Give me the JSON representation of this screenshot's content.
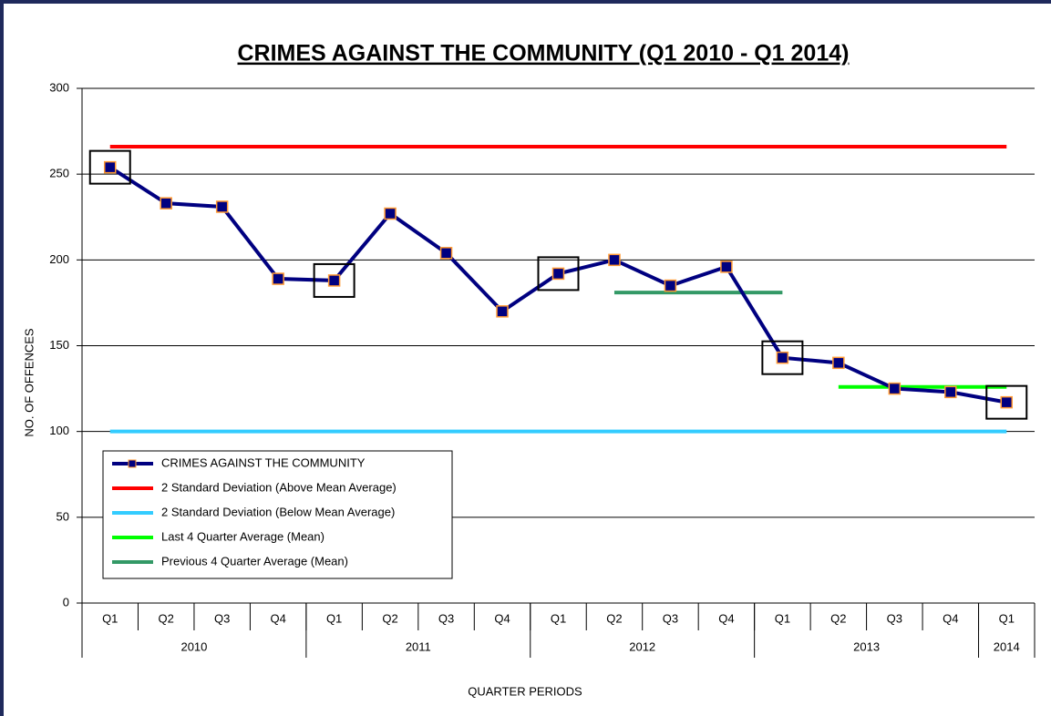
{
  "chart_data": {
    "type": "line",
    "title": "CRIMES AGAINST THE COMMUNITY (Q1 2010 - Q1 2014)",
    "y_label": "NO. OF OFFENCES",
    "x_label": "QUARTER PERIODS",
    "categories": [
      "Q1",
      "Q2",
      "Q3",
      "Q4",
      "Q1",
      "Q2",
      "Q3",
      "Q4",
      "Q1",
      "Q2",
      "Q3",
      "Q4",
      "Q1",
      "Q2",
      "Q3",
      "Q4",
      "Q1"
    ],
    "x_groups": [
      {
        "label": "2010",
        "categories": [
          "Q1",
          "Q2",
          "Q3",
          "Q4"
        ]
      },
      {
        "label": "2011",
        "categories": [
          "Q1",
          "Q2",
          "Q3",
          "Q4"
        ]
      },
      {
        "label": "2012",
        "categories": [
          "Q1",
          "Q2",
          "Q3",
          "Q4"
        ]
      },
      {
        "label": "2013",
        "categories": [
          "Q1",
          "Q2",
          "Q3",
          "Q4"
        ]
      },
      {
        "label": "2014",
        "categories": [
          "Q1"
        ]
      }
    ],
    "series": [
      {
        "name": "CRIMES AGAINST THE COMMUNITY",
        "color": "#000080",
        "marker": "square",
        "values": [
          254,
          233,
          231,
          189,
          188,
          227,
          204,
          170,
          192,
          200,
          185,
          196,
          143,
          140,
          125,
          123,
          117
        ]
      },
      {
        "name": "2 Standard Deviation (Above Mean Average)",
        "color": "#ff0000",
        "values": [
          266,
          266,
          266,
          266,
          266,
          266,
          266,
          266,
          266,
          266,
          266,
          266,
          266,
          266,
          266,
          266,
          266
        ]
      },
      {
        "name": "2 Standard Deviation (Below Mean Average)",
        "color": "#33ccff",
        "values": [
          100,
          100,
          100,
          100,
          100,
          100,
          100,
          100,
          100,
          100,
          100,
          100,
          100,
          100,
          100,
          100,
          100
        ]
      },
      {
        "name": "Last 4 Quarter Average (Mean)",
        "color": "#00ff00",
        "values": [
          null,
          null,
          null,
          null,
          null,
          null,
          null,
          null,
          null,
          null,
          null,
          null,
          null,
          126,
          126,
          126,
          126
        ]
      },
      {
        "name": "Previous 4 Quarter Average (Mean)",
        "color": "#339966",
        "values": [
          null,
          null,
          null,
          null,
          null,
          null,
          null,
          null,
          null,
          181,
          181,
          181,
          181,
          null,
          null,
          null,
          null
        ]
      }
    ],
    "ylim": [
      0,
      300
    ],
    "yticks": [
      0,
      50,
      100,
      150,
      200,
      250,
      300
    ],
    "grid": true
  }
}
